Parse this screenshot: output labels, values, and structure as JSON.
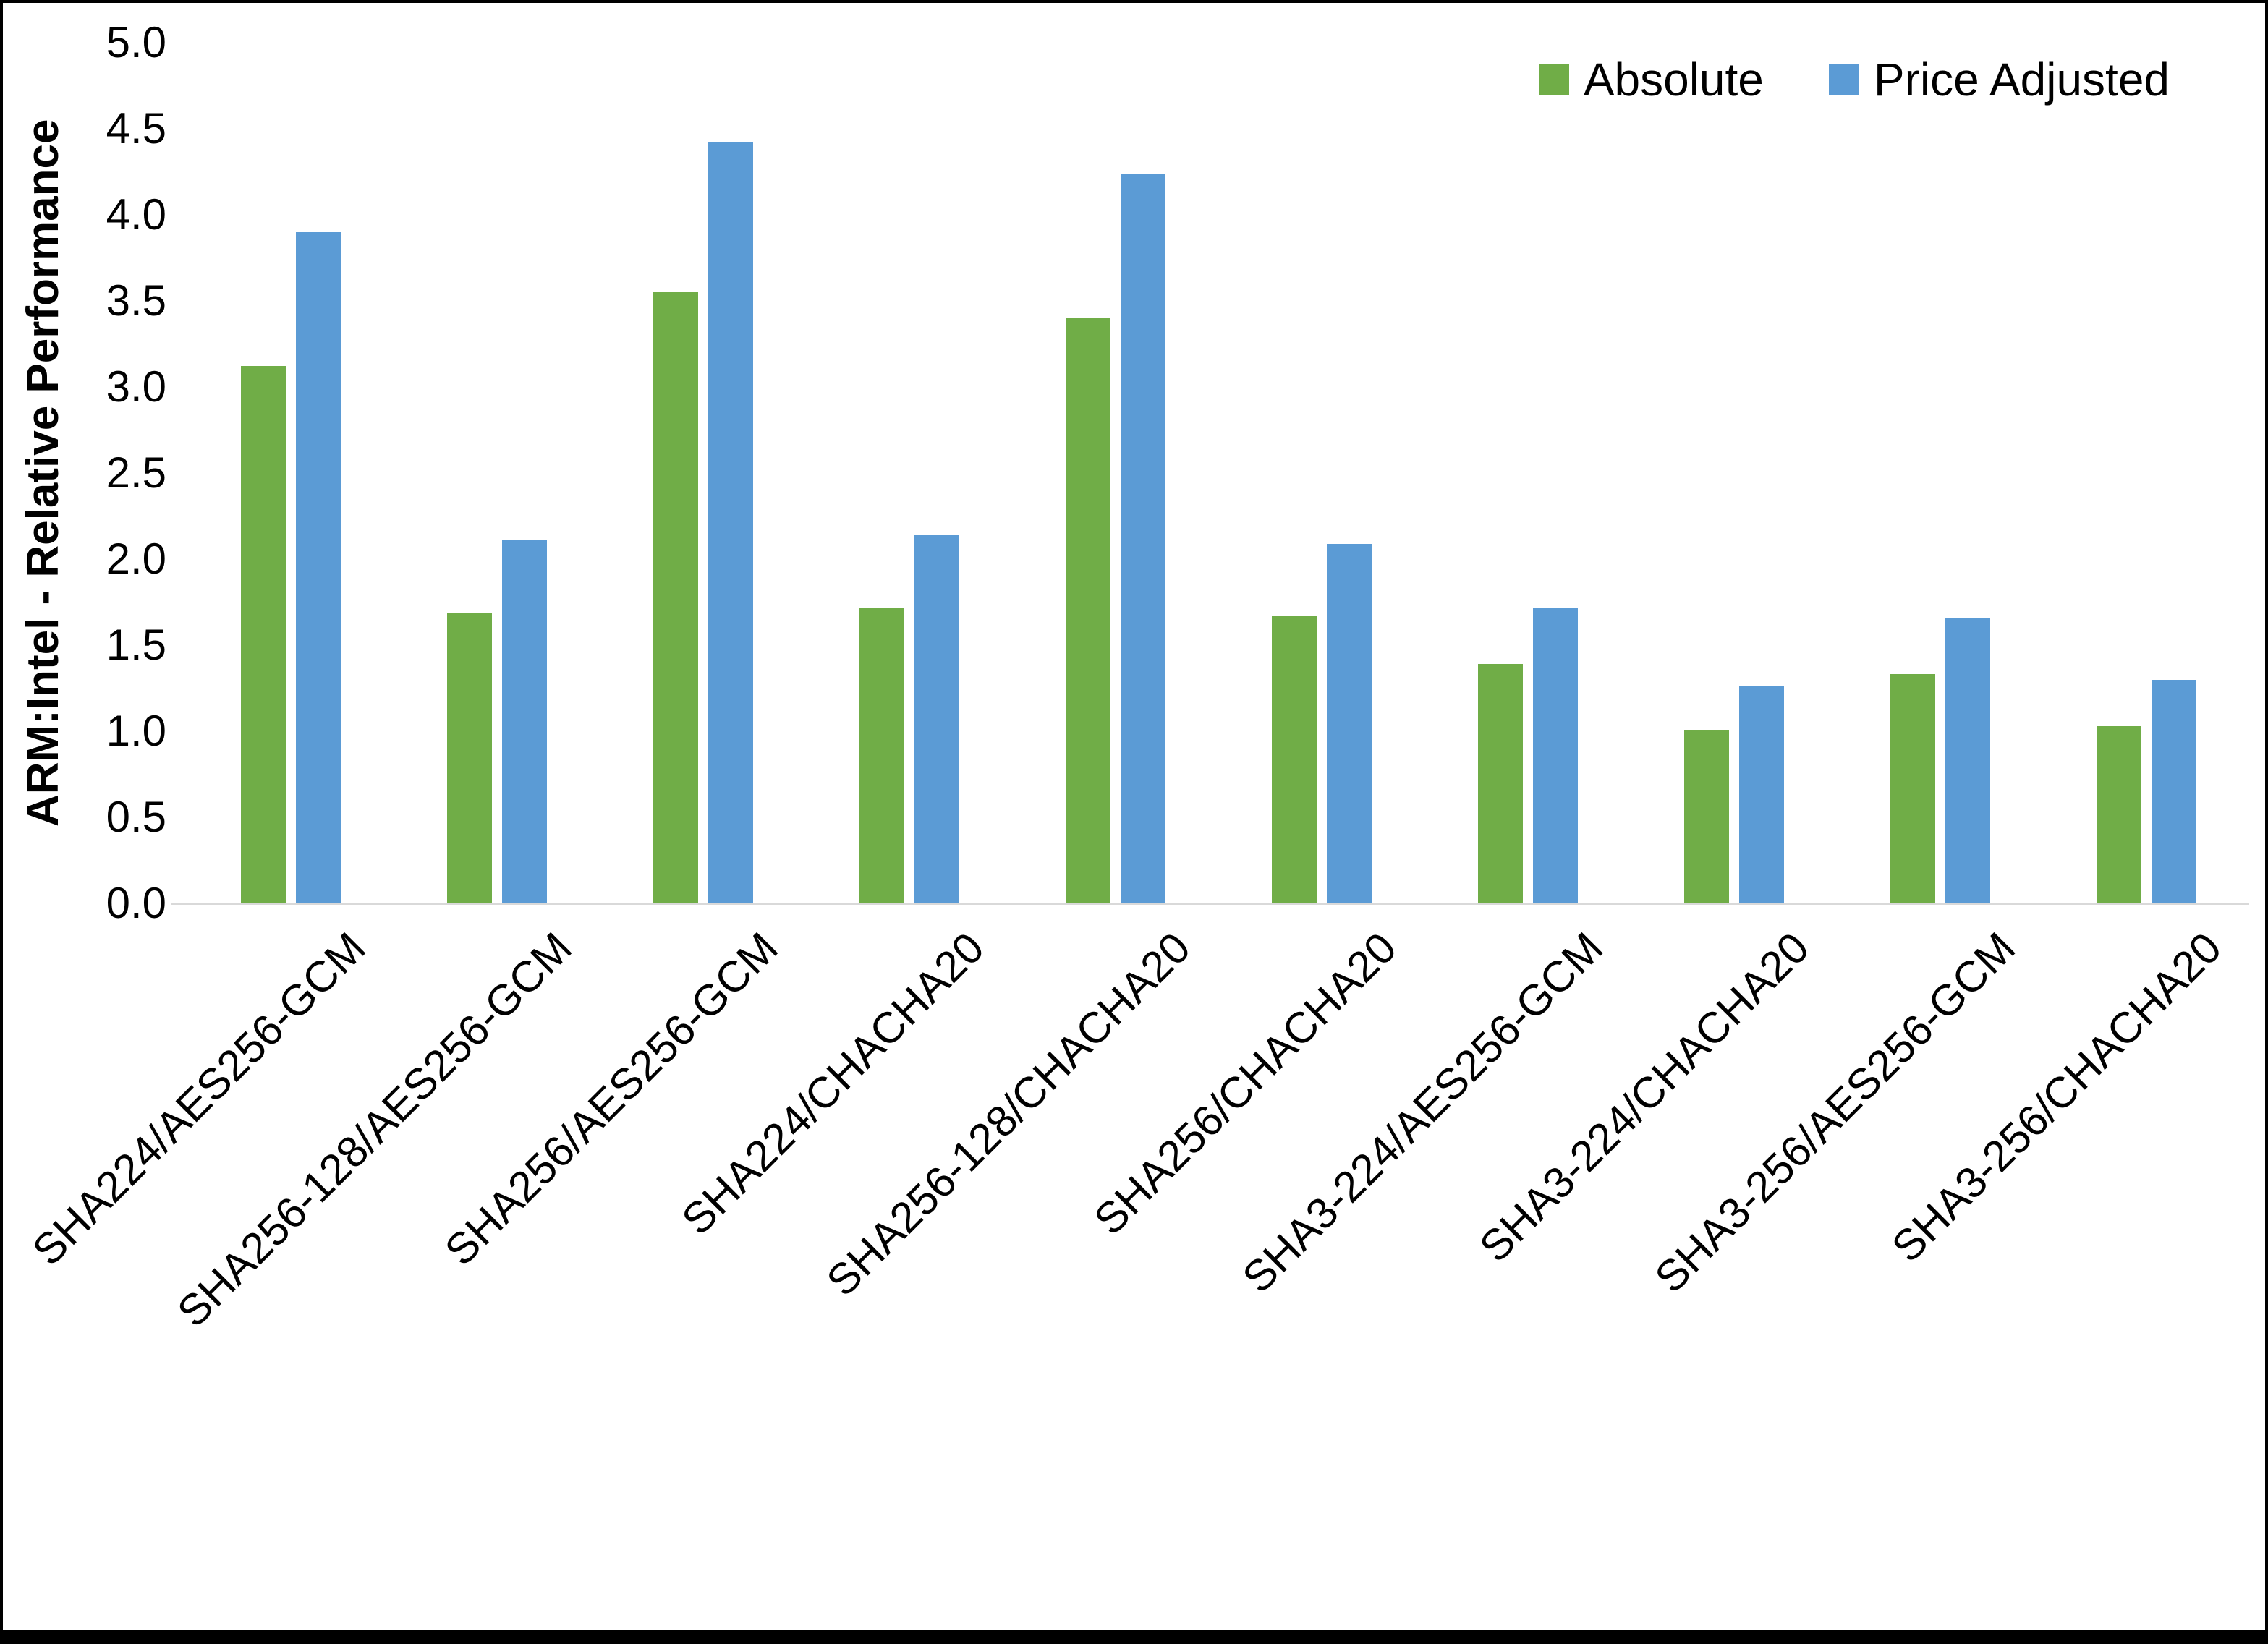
{
  "chart_data": {
    "type": "bar",
    "title": "",
    "ylabel": "ARM:Intel - Relative Performance",
    "xlabel": "",
    "categories": [
      "SHA224/AES256-GCM",
      "SHA256-128/AES256-GCM",
      "SHA256/AES256-GCM",
      "SHA224/CHACHA20",
      "SHA256-128/CHACHA20",
      "SHA256/CHACHA20",
      "SHA3-224/AES256-GCM",
      "SHA3-224/CHACHA20",
      "SHA3-256/AES256-GCM",
      "SHA3-256/CHACHA20"
    ],
    "series": [
      {
        "name": "Absolute",
        "color": "#70AD47",
        "values": [
          3.12,
          1.69,
          3.55,
          1.72,
          3.4,
          1.67,
          1.39,
          1.01,
          1.33,
          1.03
        ]
      },
      {
        "name": "Price Adjusted",
        "color": "#5B9BD5",
        "values": [
          3.9,
          2.11,
          4.42,
          2.14,
          4.24,
          2.09,
          1.72,
          1.26,
          1.66,
          1.3
        ]
      }
    ],
    "ylim": [
      0,
      5
    ],
    "ytick_step": 0.5,
    "ytick_labels": [
      "0.0",
      "0.5",
      "1.0",
      "1.5",
      "2.0",
      "2.5",
      "3.0",
      "3.5",
      "4.0",
      "4.5",
      "5.0"
    ],
    "legend_position": "top-right",
    "grid": "baseline-only",
    "axis_line_color": "#d9d9d9"
  }
}
